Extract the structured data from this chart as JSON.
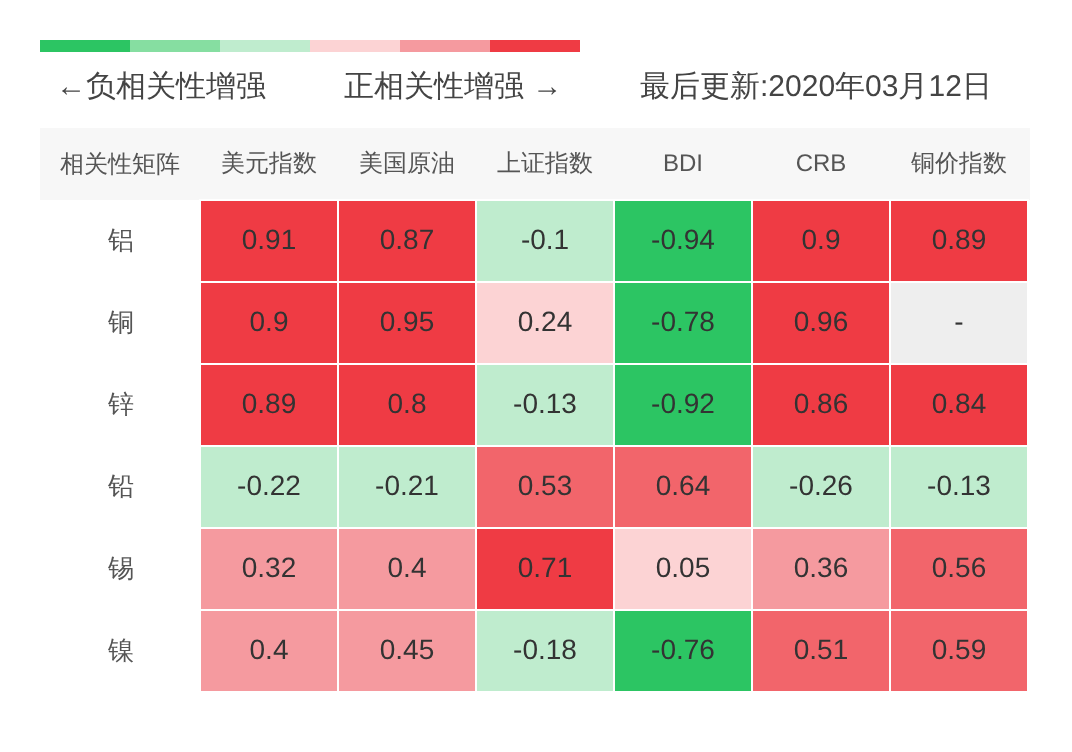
{
  "chart_data": {
    "type": "heatmap",
    "ylabel": "相关性矩阵",
    "annotations": [
      "←负相关性增强",
      "正相关性增强 →",
      "最后更新:2020年03月12日"
    ],
    "categories": [
      "美元指数",
      "美国原油",
      "上证指数",
      "BDI",
      "CRB",
      "铜价指数"
    ],
    "y_categories": [
      "铝",
      "铜",
      "锌",
      "铅",
      "锡",
      "镍"
    ],
    "cells": [
      [
        0.91,
        0.87,
        -0.1,
        -0.94,
        0.9,
        0.89
      ],
      [
        0.9,
        0.95,
        0.24,
        -0.78,
        0.96,
        null
      ],
      [
        0.89,
        0.8,
        -0.13,
        -0.92,
        0.86,
        0.84
      ],
      [
        -0.22,
        -0.21,
        0.53,
        0.64,
        -0.26,
        -0.13
      ],
      [
        0.32,
        0.4,
        0.71,
        0.05,
        0.36,
        0.56
      ],
      [
        0.4,
        0.45,
        -0.18,
        -0.76,
        0.51,
        0.59
      ]
    ],
    "cell_labels": [
      [
        "0.91",
        "0.87",
        "-0.1",
        "-0.94",
        "0.9",
        "0.89"
      ],
      [
        "0.9",
        "0.95",
        "0.24",
        "-0.78",
        "0.96",
        "-"
      ],
      [
        "0.89",
        "0.8",
        "-0.13",
        "-0.92",
        "0.86",
        "0.84"
      ],
      [
        "-0.22",
        "-0.21",
        "0.53",
        "0.64",
        "-0.26",
        "-0.13"
      ],
      [
        "0.32",
        "0.4",
        "0.71",
        "0.05",
        "0.36",
        "0.56"
      ],
      [
        "0.4",
        "0.45",
        "-0.18",
        "-0.76",
        "0.51",
        "0.59"
      ]
    ]
  }
}
